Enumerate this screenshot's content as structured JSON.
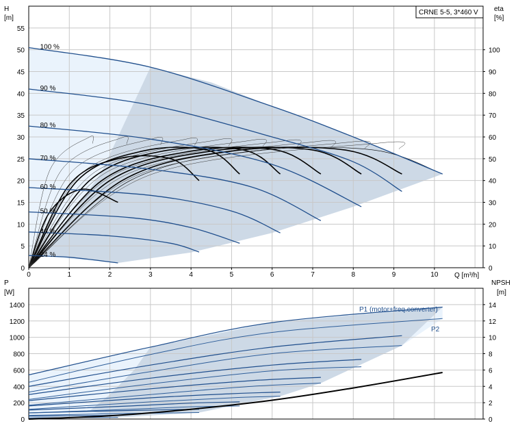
{
  "chart_data": [
    {
      "type": "line",
      "title": "CRNE 5-5, 3*460 V",
      "xlabel": "Q [m³/h]",
      "ylabel_left": "H",
      "ylabel_left_unit": "[m]",
      "ylabel_right": "eta",
      "ylabel_right_unit": "[%]",
      "xlim": [
        0,
        11.2
      ],
      "ylim_left": [
        0,
        60
      ],
      "ylim_right": [
        0,
        120
      ],
      "x_ticks": [
        "0",
        "1",
        "2",
        "3",
        "4",
        "5",
        "6",
        "7",
        "8",
        "9",
        "10"
      ],
      "y_ticks_left": [
        "0",
        "5",
        "10",
        "15",
        "20",
        "25",
        "30",
        "35",
        "40",
        "45",
        "50",
        "55"
      ],
      "y_ticks_right": [
        "0",
        "10",
        "20",
        "30",
        "40",
        "50",
        "60",
        "70",
        "80",
        "90",
        "100"
      ],
      "grid": true,
      "speed_labels": [
        "100 %",
        "90 %",
        "80 %",
        "70 %",
        "60 %",
        "50 %",
        "40 %",
        "24 %"
      ],
      "head_curves": [
        {
          "name": "100 %",
          "x": [
            0,
            3,
            6,
            8,
            10.2
          ],
          "y": [
            50.5,
            46,
            37,
            30,
            21.5
          ]
        },
        {
          "name": "90 %",
          "x": [
            0,
            3,
            6,
            8,
            9.2
          ],
          "y": [
            41,
            37.3,
            30,
            24.3,
            17.5
          ]
        },
        {
          "name": "80 %",
          "x": [
            0,
            3,
            6,
            8.2
          ],
          "y": [
            32.5,
            29.5,
            23.7,
            14
          ]
        },
        {
          "name": "70 %",
          "x": [
            0,
            3,
            5.5,
            7.2
          ],
          "y": [
            25,
            22.6,
            18.5,
            10.8
          ]
        },
        {
          "name": "60 %",
          "x": [
            0,
            3,
            5,
            6.2
          ],
          "y": [
            18.4,
            16.6,
            13,
            8
          ]
        },
        {
          "name": "50 %",
          "x": [
            0,
            2.5,
            4,
            5.2
          ],
          "y": [
            12.8,
            11.5,
            9.2,
            5.6
          ]
        },
        {
          "name": "40 %",
          "x": [
            0,
            2,
            3.5,
            4.2
          ],
          "y": [
            8.2,
            7.3,
            5.6,
            3.6
          ]
        },
        {
          "name": "24 %",
          "x": [
            0,
            1,
            2.2
          ],
          "y": [
            2.8,
            2.4,
            1.1
          ]
        }
      ],
      "eta_curves": [
        {
          "name": "100 %",
          "x": [
            0,
            2.5,
            5.5,
            8.5,
            10.2
          ],
          "y": [
            0,
            40,
            53.5,
            54,
            43
          ]
        },
        {
          "name": "90 %",
          "x": [
            0,
            2.3,
            5,
            7.8,
            9.2
          ],
          "y": [
            0,
            40,
            53.5,
            54,
            43
          ]
        },
        {
          "name": "80 %",
          "x": [
            0,
            2,
            4.5,
            7,
            8.2
          ],
          "y": [
            0,
            40,
            53.5,
            54,
            43
          ]
        },
        {
          "name": "70 %",
          "x": [
            0,
            1.8,
            4,
            6.1,
            7.2
          ],
          "y": [
            0,
            40,
            53.5,
            54,
            43
          ]
        },
        {
          "name": "60 %",
          "x": [
            0,
            1.5,
            3.3,
            5.3,
            6.2
          ],
          "y": [
            0,
            40,
            53.5,
            54,
            43
          ]
        },
        {
          "name": "50 %",
          "x": [
            0,
            1.2,
            2.8,
            4.4,
            5.2
          ],
          "y": [
            0,
            40,
            53.5,
            54,
            43
          ]
        },
        {
          "name": "40 %",
          "x": [
            0,
            1,
            2.2,
            3.5,
            4.2
          ],
          "y": [
            0,
            38,
            50,
            50,
            40
          ]
        },
        {
          "name": "24 %",
          "x": [
            0,
            0.5,
            1.3,
            2.2
          ],
          "y": [
            0,
            25,
            36,
            30
          ]
        }
      ]
    },
    {
      "type": "line",
      "xlabel": "",
      "ylabel_left": "P",
      "ylabel_left_unit": "[W]",
      "ylabel_right": "NPSH",
      "ylabel_right_unit": "[m]",
      "xlim": [
        0,
        11.2
      ],
      "ylim_left": [
        0,
        1600
      ],
      "ylim_right": [
        0,
        16
      ],
      "y_ticks_left": [
        "0",
        "200",
        "400",
        "600",
        "800",
        "1000",
        "1200",
        "1400"
      ],
      "y_ticks_right": [
        "0",
        "2",
        "4",
        "6",
        "8",
        "10",
        "12",
        "14"
      ],
      "grid": true,
      "series_labels": [
        "P1 (motor+freq.converter)",
        "P2"
      ],
      "p1_curves": [
        {
          "x": [
            0,
            3,
            6,
            10.2
          ],
          "y": [
            540,
            880,
            1180,
            1370
          ]
        },
        {
          "x": [
            0,
            3,
            6,
            9.2
          ],
          "y": [
            400,
            660,
            880,
            1020
          ]
        },
        {
          "x": [
            0,
            3,
            6,
            8.2
          ],
          "y": [
            300,
            500,
            660,
            730
          ]
        },
        {
          "x": [
            0,
            3,
            5.5,
            7.2
          ],
          "y": [
            225,
            370,
            470,
            510
          ]
        },
        {
          "x": [
            0,
            3,
            5,
            6.2
          ],
          "y": [
            160,
            260,
            310,
            330
          ]
        },
        {
          "x": [
            0,
            2.5,
            4,
            5.2
          ],
          "y": [
            110,
            160,
            195,
            210
          ]
        },
        {
          "x": [
            0,
            2,
            3.5,
            4.2
          ],
          "y": [
            75,
            100,
            115,
            120
          ]
        },
        {
          "x": [
            0,
            1,
            2.2
          ],
          "y": [
            35,
            40,
            45
          ]
        }
      ],
      "p2_curves": [
        {
          "x": [
            0,
            3,
            6,
            10.2
          ],
          "y": [
            450,
            790,
            1060,
            1230
          ]
        },
        {
          "x": [
            0,
            3,
            6,
            9.2
          ],
          "y": [
            330,
            580,
            800,
            900
          ]
        },
        {
          "x": [
            0,
            3,
            6,
            8.2
          ],
          "y": [
            240,
            430,
            590,
            640
          ]
        },
        {
          "x": [
            0,
            3,
            5.5,
            7.2
          ],
          "y": [
            170,
            300,
            400,
            440
          ]
        },
        {
          "x": [
            0,
            3,
            5,
            6.2
          ],
          "y": [
            120,
            210,
            260,
            280
          ]
        },
        {
          "x": [
            0,
            2.5,
            4,
            5.2
          ],
          "y": [
            75,
            120,
            150,
            160
          ]
        },
        {
          "x": [
            0,
            2,
            3.5,
            4.2
          ],
          "y": [
            45,
            65,
            75,
            80
          ]
        },
        {
          "x": [
            0,
            1,
            2.2
          ],
          "y": [
            15,
            18,
            20
          ]
        }
      ],
      "npsh_curve": {
        "x": [
          0,
          2,
          4,
          6,
          8,
          10.2
        ],
        "y": [
          0,
          0.4,
          1.2,
          2.3,
          3.8,
          5.7
        ]
      }
    }
  ]
}
